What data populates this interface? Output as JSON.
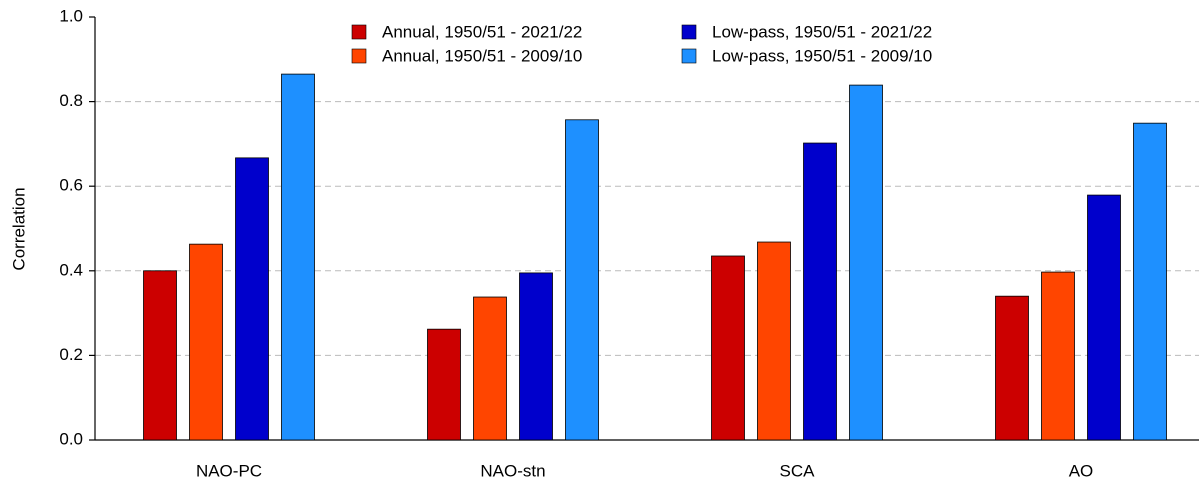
{
  "chart_data": {
    "type": "bar",
    "y_label": "Correlation",
    "categories": [
      "NAO-PC",
      "NAO-stn",
      "SCA",
      "AO"
    ],
    "series": [
      {
        "name": "Annual, 1950/51 - 2021/22",
        "color": "#cc0000",
        "values": [
          0.4,
          0.262,
          0.435,
          0.34
        ]
      },
      {
        "name": "Annual, 1950/51 - 2009/10",
        "color": "#ff4500",
        "values": [
          0.463,
          0.338,
          0.468,
          0.397
        ]
      },
      {
        "name": "Low-pass, 1950/51 - 2021/22",
        "color": "#0000cc",
        "values": [
          0.667,
          0.395,
          0.702,
          0.579
        ]
      },
      {
        "name": "Low-pass, 1950/51 - 2009/10",
        "color": "#1e90ff",
        "values": [
          0.865,
          0.757,
          0.839,
          0.749
        ]
      }
    ],
    "ylim": [
      0,
      1
    ],
    "yticks": [
      {
        "value": 0,
        "label": "0.0"
      },
      {
        "value": 0.2,
        "label": "0.2"
      },
      {
        "value": 0.4,
        "label": "0.4"
      },
      {
        "value": 0.6,
        "label": "0.6"
      },
      {
        "value": 0.8,
        "label": "0.8"
      },
      {
        "value": 1,
        "label": "1.0"
      }
    ],
    "grid": true,
    "legend": "top"
  }
}
